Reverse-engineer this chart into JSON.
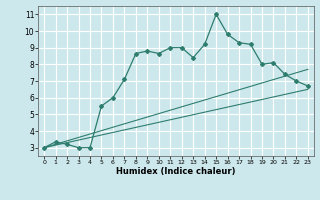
{
  "xlabel": "Humidex (Indice chaleur)",
  "xlim": [
    -0.5,
    23.5
  ],
  "ylim": [
    2.5,
    11.5
  ],
  "yticks": [
    3,
    4,
    5,
    6,
    7,
    8,
    9,
    10,
    11
  ],
  "xticks": [
    0,
    1,
    2,
    3,
    4,
    5,
    6,
    7,
    8,
    9,
    10,
    11,
    12,
    13,
    14,
    15,
    16,
    17,
    18,
    19,
    20,
    21,
    22,
    23
  ],
  "bg_color": "#cde8ec",
  "grid_color": "#ffffff",
  "line_color": "#2e7d6e",
  "zigzag_x": [
    0,
    1,
    2,
    3,
    4,
    5,
    6,
    7,
    8,
    9,
    10,
    11,
    12,
    13,
    14,
    15,
    16,
    17,
    18,
    19,
    20,
    21,
    22,
    23
  ],
  "zigzag_y": [
    3.0,
    3.35,
    3.2,
    3.0,
    3.0,
    5.5,
    6.0,
    7.1,
    8.65,
    8.8,
    8.65,
    9.0,
    9.0,
    8.4,
    9.2,
    11.0,
    9.8,
    9.3,
    9.2,
    8.0,
    8.1,
    7.4,
    7.0,
    6.7
  ],
  "line2_x": [
    0,
    23
  ],
  "line2_y": [
    3.0,
    6.5
  ],
  "line3_x": [
    0,
    23
  ],
  "line3_y": [
    3.0,
    7.7
  ]
}
